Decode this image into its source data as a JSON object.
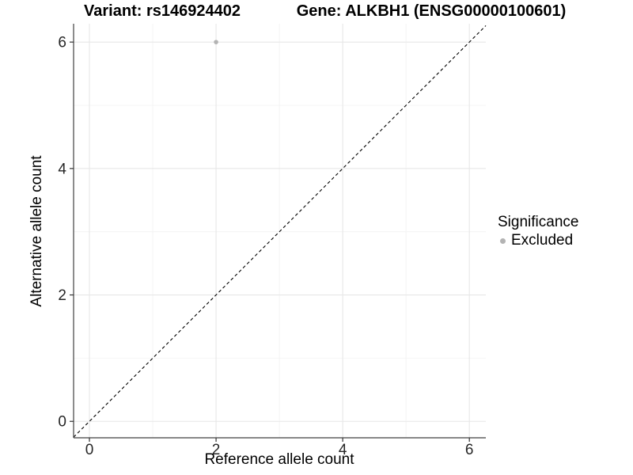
{
  "chart_data": {
    "type": "scatter",
    "titles": {
      "left": "Variant: rs146924402",
      "right": "Gene: ALKBH1 (ENSG00000100601)"
    },
    "xlabel": "Reference allele count",
    "ylabel": "Alternative allele count",
    "xlim": [
      -0.25,
      6.26
    ],
    "ylim": [
      -0.26,
      6.29
    ],
    "x_ticks": [
      0,
      2,
      4,
      6
    ],
    "y_ticks": [
      0,
      2,
      4,
      6
    ],
    "x_minor_ticks": [
      1,
      3,
      5
    ],
    "y_minor_ticks": [
      1,
      3,
      5
    ],
    "grid": true,
    "points": [
      {
        "x": 2,
        "y": 6,
        "significance": "Excluded"
      }
    ],
    "reference_line": {
      "kind": "identity",
      "slope": 1,
      "intercept": 0,
      "style": "dashed",
      "color": "#000000"
    },
    "legend": {
      "title": "Significance",
      "position": "right",
      "items": [
        {
          "label": "Excluded",
          "color": "#b3b3b3",
          "marker": "circle"
        }
      ]
    },
    "colors": {
      "point": "#b3b3b3",
      "major_grid": "#e7e7e7",
      "minor_grid": "#f4f4f4",
      "axis_line": "#404040",
      "tick_mark": "#333333",
      "tick_label": "#262626",
      "text": "#000000",
      "background": "#ffffff"
    }
  }
}
